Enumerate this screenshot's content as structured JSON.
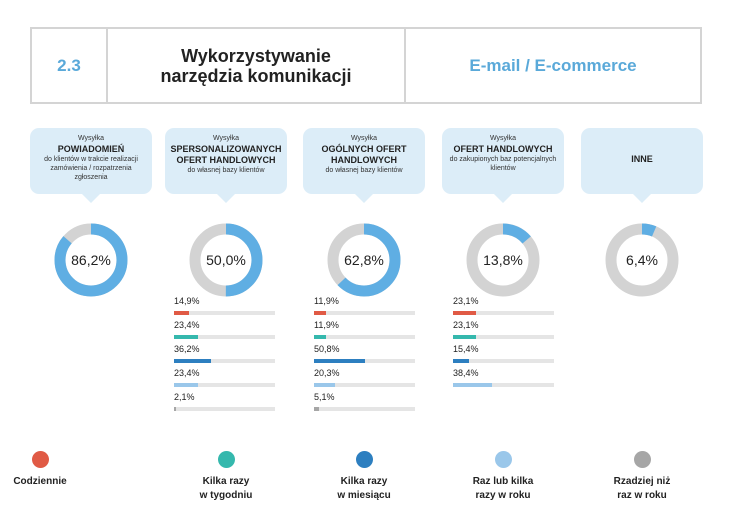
{
  "header": {
    "number": "2.3",
    "title_line1": "Wykorzystywanie",
    "title_line2": "narzędzia komunikacji",
    "right": "E-mail / E-commerce"
  },
  "colors": {
    "daily": "#e05a45",
    "weekly": "#35b8ad",
    "monthly": "#2d7fc0",
    "yearly": "#9ac7ea",
    "rarely": "#a6a6a6",
    "donut_fill": "#5faee3",
    "donut_track": "#d3d3d3",
    "bubble_bg": "#dcedf8"
  },
  "chart_data": {
    "type": "donut",
    "categories": [
      {
        "top": "Wysyłka",
        "title": "POWIADOMIEŃ",
        "title2": "",
        "desc": "do klientów w trakcie realizacji zamówienia / rozpatrzenia zgłoszenia",
        "percent": 86.2,
        "label": "86,2%",
        "breakdown": []
      },
      {
        "top": "Wysyłka",
        "title": "SPERSONALIZOWANYCH",
        "title2": "OFERT HANDLOWYCH",
        "desc": "do własnej bazy klientów",
        "percent": 50.0,
        "label": "50,0%",
        "breakdown": [
          {
            "value": 14.9,
            "label": "14,9%",
            "freq": "daily"
          },
          {
            "value": 23.4,
            "label": "23,4%",
            "freq": "weekly"
          },
          {
            "value": 36.2,
            "label": "36,2%",
            "freq": "monthly"
          },
          {
            "value": 23.4,
            "label": "23,4%",
            "freq": "yearly"
          },
          {
            "value": 2.1,
            "label": "2,1%",
            "freq": "rarely"
          }
        ]
      },
      {
        "top": "Wysyłka",
        "title": "OGÓLNYCH OFERT",
        "title2": "HANDLOWYCH",
        "desc": "do własnej bazy klientów",
        "percent": 62.8,
        "label": "62,8%",
        "breakdown": [
          {
            "value": 11.9,
            "label": "11,9%",
            "freq": "daily"
          },
          {
            "value": 11.9,
            "label": "11,9%",
            "freq": "weekly"
          },
          {
            "value": 50.8,
            "label": "50,8%",
            "freq": "monthly"
          },
          {
            "value": 20.3,
            "label": "20,3%",
            "freq": "yearly"
          },
          {
            "value": 5.1,
            "label": "5,1%",
            "freq": "rarely"
          }
        ]
      },
      {
        "top": "Wysyłka",
        "title": "OFERT HANDLOWYCH",
        "title2": "",
        "desc": "do zakupionych baz potencjalnych klientów",
        "percent": 13.8,
        "label": "13,8%",
        "breakdown": [
          {
            "value": 23.1,
            "label": "23,1%",
            "freq": "daily"
          },
          {
            "value": 23.1,
            "label": "23,1%",
            "freq": "weekly"
          },
          {
            "value": 15.4,
            "label": "15,4%",
            "freq": "monthly"
          },
          {
            "value": 38.4,
            "label": "38,4%",
            "freq": "yearly"
          }
        ]
      },
      {
        "top": "",
        "title": "INNE",
        "title2": "",
        "desc": "",
        "percent": 6.4,
        "label": "6,4%",
        "breakdown": []
      }
    ],
    "bar_scale_max": 100
  },
  "legend": [
    {
      "key": "daily",
      "line1": "Codziennie",
      "line2": ""
    },
    {
      "key": "weekly",
      "line1": "Kilka razy",
      "line2": "w tygodniu"
    },
    {
      "key": "monthly",
      "line1": "Kilka razy",
      "line2": "w miesiącu"
    },
    {
      "key": "yearly",
      "line1": "Raz lub kilka",
      "line2": "razy w roku"
    },
    {
      "key": "rarely",
      "line1": "Rzadziej niż",
      "line2": "raz w roku"
    }
  ]
}
